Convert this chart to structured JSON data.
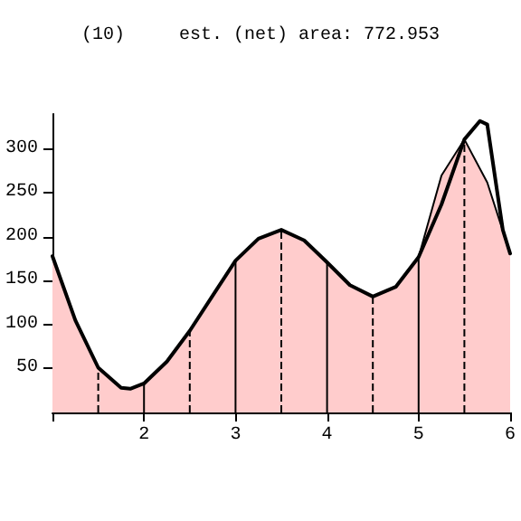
{
  "chart_data": {
    "type": "line",
    "title": "(10)     est. (net) area: 772.953",
    "xlim": [
      1,
      6
    ],
    "xticks": [
      {
        "value": 1,
        "label": null
      },
      2,
      3,
      4,
      5,
      6
    ],
    "ylim": [
      0,
      340
    ],
    "yticks": [
      50,
      100,
      150,
      200,
      250,
      300
    ],
    "grid": false,
    "marker": "none",
    "series": [
      {
        "type": "area",
        "color": "#ffcccc",
        "x": [
          1,
          1.25,
          1.5,
          1.75,
          1.85,
          2,
          2.25,
          2.5,
          2.75,
          3,
          3.25,
          3.5,
          3.75,
          4,
          4.25,
          4.5,
          4.75,
          5,
          5.25,
          5.5,
          5.75,
          6
        ],
        "values": [
          178,
          105,
          51,
          28,
          27,
          33,
          58,
          93,
          133,
          173,
          198,
          208,
          196,
          171,
          145,
          132,
          143,
          177,
          270,
          311,
          262,
          181
        ]
      },
      {
        "color": "#000000",
        "x": [
          1,
          1.25,
          1.5,
          1.75,
          1.85,
          2,
          2.25,
          2.5,
          2.75,
          3,
          3.25,
          3.5,
          3.75,
          4,
          4.25,
          4.5,
          4.75,
          5,
          5.25,
          5.5,
          5.67,
          5.75,
          5.92,
          6
        ],
        "values": [
          178,
          105,
          51,
          28,
          27,
          33,
          58,
          93,
          133,
          173,
          198,
          208,
          196,
          171,
          145,
          132,
          143,
          177,
          237,
          311,
          332,
          328,
          208,
          181
        ]
      }
    ],
    "ref_lines": [
      {
        "axis": "x",
        "value": 1.5,
        "line_style": "dashed"
      },
      {
        "axis": "x",
        "value": 2,
        "line_style": "solid"
      },
      {
        "axis": "x",
        "value": 2.5,
        "line_style": "dashed"
      },
      {
        "axis": "x",
        "value": 3,
        "line_style": "solid"
      },
      {
        "axis": "x",
        "value": 3.5,
        "line_style": "dashed"
      },
      {
        "axis": "x",
        "value": 4,
        "line_style": "solid"
      },
      {
        "axis": "x",
        "value": 4.5,
        "line_style": "dashed"
      },
      {
        "axis": "x",
        "value": 5,
        "line_style": "solid"
      },
      {
        "axis": "x",
        "value": 5.5,
        "line_style": "dashed"
      }
    ]
  }
}
